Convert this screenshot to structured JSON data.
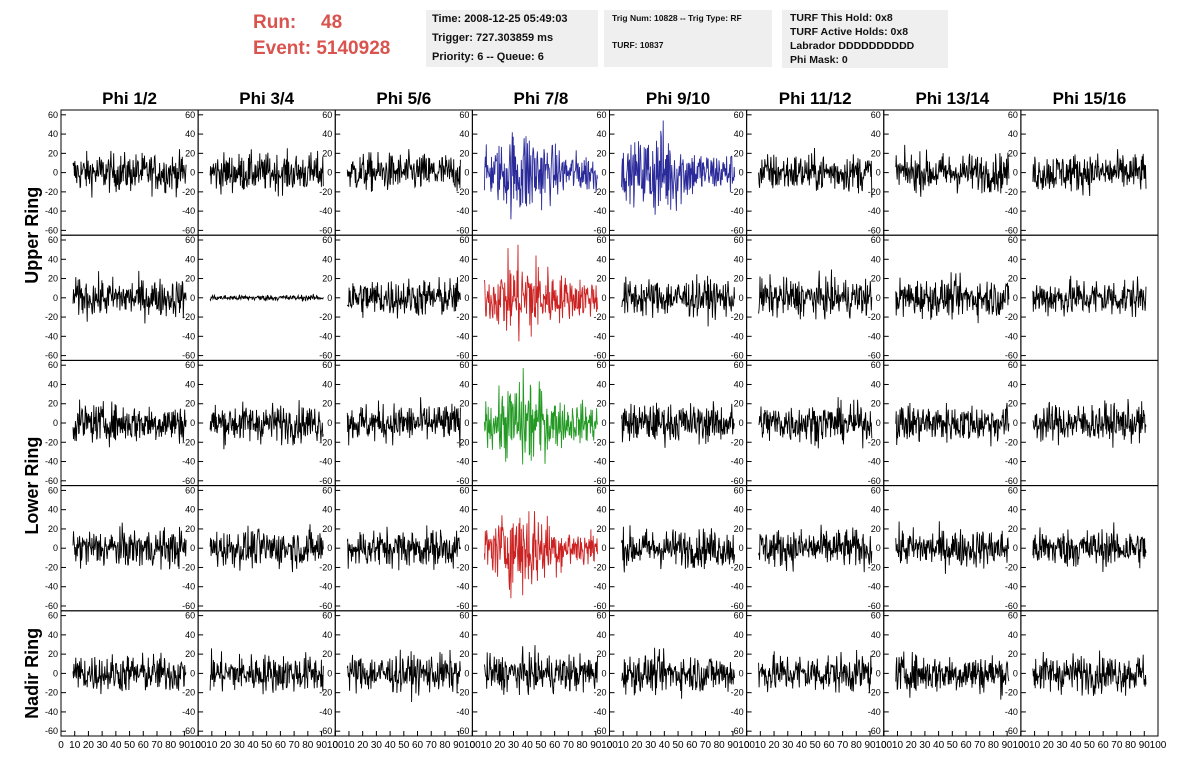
{
  "header": {
    "run_label": "Run:",
    "run_value": "48",
    "event_label": "Event:",
    "event_value": "5140928",
    "color_run": "#d9534f"
  },
  "info_time": {
    "time": "Time: 2008-12-25 05:49:03",
    "trigger": "Trigger: 727.303859 ms",
    "priority": "Priority: 6 -- Queue: 6"
  },
  "info_trig": {
    "trig_num": "Trig Num: 10828 -- Trig Type: RF",
    "turf": "TURF: 10837"
  },
  "info_turf": {
    "hold": "TURF This Hold: 0x8",
    "active_holds": "TURF Active Holds: 0x8",
    "labrador": "Labrador DDDDDDDDDD",
    "phi_mask": "Phi Mask: 0"
  },
  "chart_data": {
    "type": "line",
    "columns": [
      "Phi 1/2",
      "Phi 3/4",
      "Phi 5/6",
      "Phi 7/8",
      "Phi 9/10",
      "Phi 11/12",
      "Phi 13/14",
      "Phi 15/16"
    ],
    "row_labels": [
      "Upper Ring",
      "Lower Ring",
      "Nadir Ring"
    ],
    "rows": 5,
    "y_ticks": [
      "60",
      "40",
      "20",
      "0",
      "-20",
      "-40",
      "-60"
    ],
    "ylim": [
      -65,
      65
    ],
    "x_ticks": [
      "0",
      "10",
      "20",
      "30",
      "40",
      "50",
      "60",
      "70",
      "80",
      "90",
      "100"
    ],
    "xlim": [
      0,
      100
    ],
    "colors": {
      "default": "#000000",
      "upper_pol": "#2a2a9a",
      "hilite_red": "#cc2222",
      "hilite_green": "#229922"
    },
    "highlights": [
      {
        "row": 0,
        "col": 3,
        "color": "upper_pol"
      },
      {
        "row": 0,
        "col": 4,
        "color": "upper_pol"
      },
      {
        "row": 1,
        "col": 3,
        "color": "hilite_red"
      },
      {
        "row": 2,
        "col": 3,
        "color": "hilite_green"
      },
      {
        "row": 3,
        "col": 3,
        "color": "hilite_red"
      }
    ],
    "quiet_panels": [
      {
        "row": 1,
        "col": 1
      }
    ]
  }
}
